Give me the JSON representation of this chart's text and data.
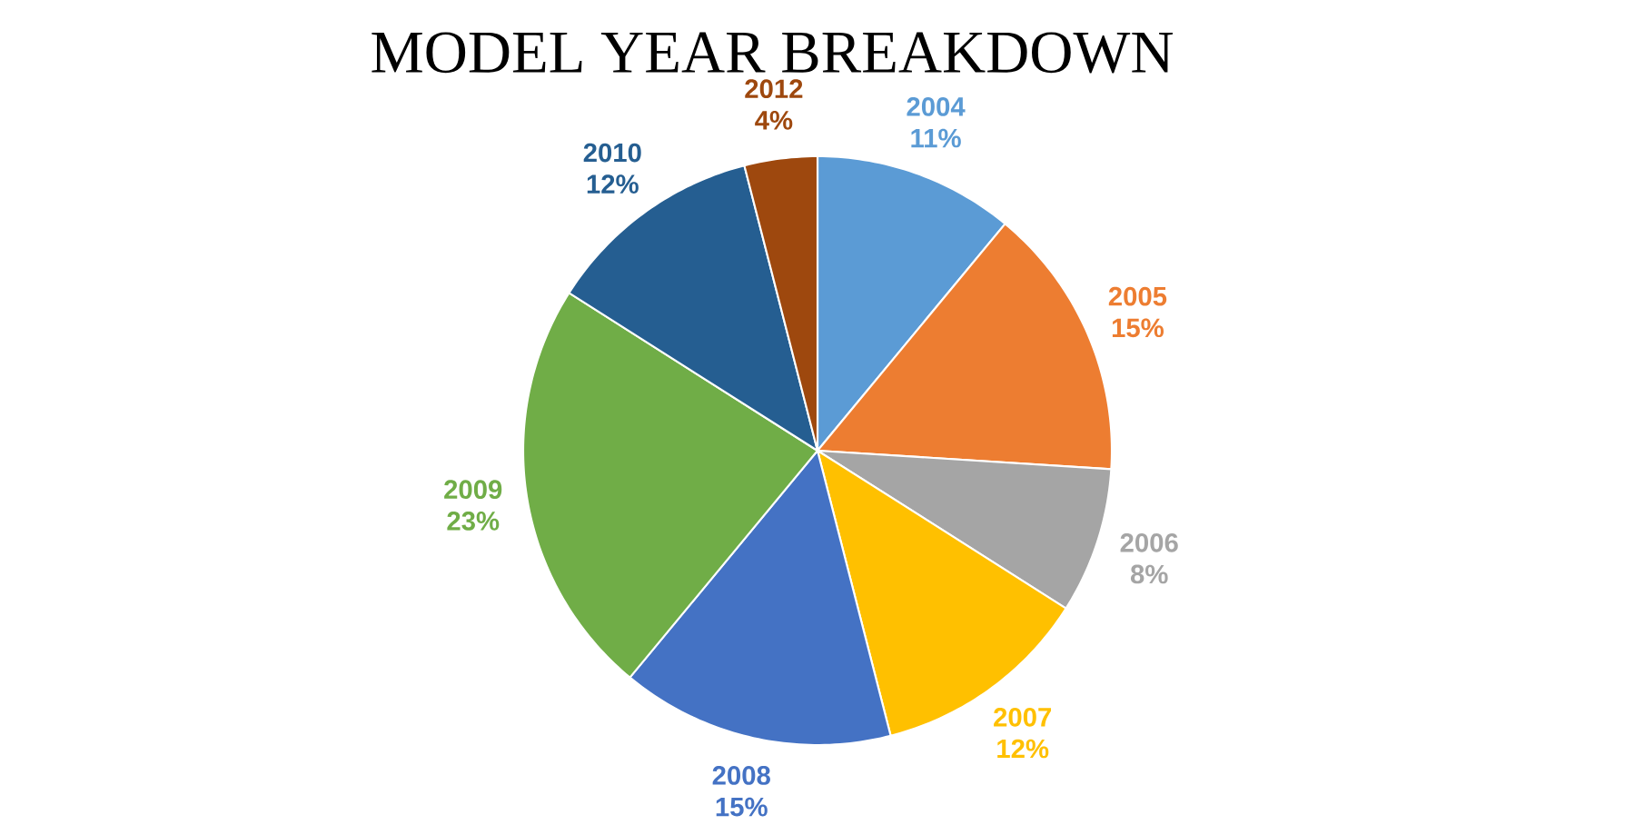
{
  "chart_data": {
    "type": "pie",
    "title": "MODEL YEAR BREAKDOWN",
    "categories": [
      "2004",
      "2005",
      "2006",
      "2007",
      "2008",
      "2009",
      "2010",
      "2012"
    ],
    "values": [
      11,
      15,
      8,
      12,
      15,
      23,
      12,
      4
    ],
    "value_labels": [
      "11%",
      "15%",
      "8%",
      "12%",
      "15%",
      "23%",
      "12%",
      "4%"
    ],
    "colors": [
      "#5b9bd5",
      "#ed7d31",
      "#a5a5a5",
      "#ffc000",
      "#4472c4",
      "#70ad47",
      "#255e91",
      "#9e480e"
    ]
  }
}
